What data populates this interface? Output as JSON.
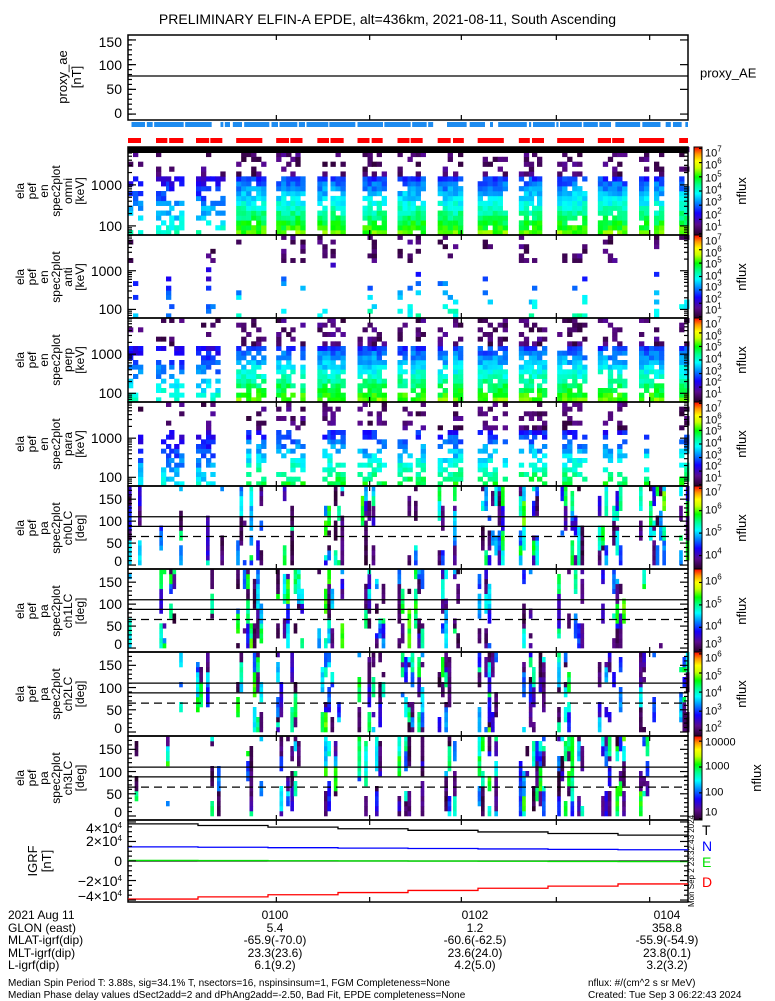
{
  "title": "PRELIMINARY ELFIN-A EPDE, alt=436km, 2021-08-11, South Ascending",
  "chart_data": {
    "type": "heatmap",
    "time_range_s": [
      0,
      336
    ],
    "time_ticks_s": [
      89,
      145,
      200,
      257,
      313
    ],
    "proxy_ae": {
      "ylabel": [
        "proxy_ae",
        "[nT]"
      ],
      "yrange": [
        -12,
        160
      ],
      "yticks": [
        {
          "v": 150,
          "label": "150"
        },
        {
          "v": 100,
          "label": "100"
        },
        {
          "v": 50,
          "label": "50"
        },
        {
          "v": 0,
          "label": "0"
        }
      ],
      "value": 77,
      "legend": "proxy_AE"
    },
    "bars": {
      "blue_color": "#1e8cf0",
      "red_color": "#ff0000",
      "blue": [
        [
          2.1,
          10.2
        ],
        [
          11.3,
          14.8
        ],
        [
          15.7,
          33.4
        ],
        [
          34.3,
          50.2
        ],
        [
          55.5,
          57.2
        ],
        [
          58.1,
          61.2
        ],
        [
          62.9,
          68.4
        ],
        [
          69.7,
          84.8
        ],
        [
          86.1,
          90
        ],
        [
          90.9,
          101.6
        ],
        [
          102.5,
          106.2
        ],
        [
          107.1,
          120.2
        ],
        [
          120.8,
          136.4
        ],
        [
          137.7,
          153
        ],
        [
          153.8,
          169.6
        ],
        [
          170.5,
          179.2
        ],
        [
          180.1,
          183.1
        ],
        [
          191.4,
          203.2
        ],
        [
          205,
          214.2
        ],
        [
          217.2,
          219
        ],
        [
          222.1,
          239.3
        ],
        [
          240.6,
          241.9
        ],
        [
          243,
          256.1
        ],
        [
          257,
          258.3
        ],
        [
          259.2,
          272.3
        ],
        [
          273.2,
          281.9
        ],
        [
          282.8,
          289.8
        ],
        [
          292.4,
          307.3
        ],
        [
          308.6,
          319.5
        ],
        [
          322.6,
          325.7
        ],
        [
          327,
          332.2
        ],
        [
          334.4,
          336
        ]
      ],
      "red": [
        [
          0,
          7.8
        ],
        [
          16.8,
          23.6
        ],
        [
          24.7,
          33.2
        ],
        [
          40.8,
          48.7
        ],
        [
          49.4,
          56.6
        ],
        [
          64.9,
          80.6
        ],
        [
          88.9,
          96.6
        ],
        [
          97.4,
          104.7
        ],
        [
          113.6,
          120.6
        ],
        [
          121.5,
          129.4
        ],
        [
          137.7,
          144.9
        ],
        [
          146.2,
          152.8
        ],
        [
          161.7,
          168.9
        ],
        [
          169.6,
          176.8
        ],
        [
          185.8,
          193.6
        ],
        [
          195,
          201.5
        ],
        [
          209.8,
          225.5
        ],
        [
          234.5,
          241.1
        ],
        [
          242.4,
          249.6
        ],
        [
          257.5,
          273.6
        ],
        [
          281.9,
          289.8
        ],
        [
          290.5,
          297.7
        ],
        [
          306.6,
          321.7
        ],
        [
          330.7,
          336
        ]
      ]
    },
    "spec_panels": [
      {
        "kind": "omni",
        "label": [
          "ela",
          "pef",
          "en",
          "spec2plot",
          "omni",
          "[keV]"
        ],
        "yrange": [
          60,
          8400
        ],
        "yticks": [
          {
            "v": 100,
            "label": "100"
          },
          {
            "v": 1000,
            "label": "1000"
          }
        ],
        "density": 0.9,
        "colorbar": {
          "range": [
            0.9,
            7.1
          ],
          "ticks": [
            {
              "v": 7,
              "base": "10",
              "exp": "7"
            },
            {
              "v": 6,
              "base": "10",
              "exp": "6"
            },
            {
              "v": 5,
              "base": "10",
              "exp": "5"
            },
            {
              "v": 4,
              "base": "10",
              "exp": "4"
            },
            {
              "v": 3,
              "base": "10",
              "exp": "3"
            },
            {
              "v": 2,
              "base": "10",
              "exp": "2"
            },
            {
              "v": 1,
              "base": "10",
              "exp": "1"
            }
          ],
          "zlabel": "nflux"
        }
      },
      {
        "kind": "anti",
        "label": [
          "ela",
          "pef",
          "en",
          "spec2plot",
          "anti",
          "[keV]"
        ],
        "yrange": [
          60,
          8400
        ],
        "yticks": [
          {
            "v": 100,
            "label": "100"
          },
          {
            "v": 1000,
            "label": "1000"
          }
        ],
        "density": 0.35,
        "colorbar": {
          "range": [
            0.9,
            7.1
          ],
          "ticks": [
            {
              "v": 7,
              "base": "10",
              "exp": "7"
            },
            {
              "v": 6,
              "base": "10",
              "exp": "6"
            },
            {
              "v": 5,
              "base": "10",
              "exp": "5"
            },
            {
              "v": 4,
              "base": "10",
              "exp": "4"
            },
            {
              "v": 3,
              "base": "10",
              "exp": "3"
            },
            {
              "v": 2,
              "base": "10",
              "exp": "2"
            },
            {
              "v": 1,
              "base": "10",
              "exp": "1"
            }
          ],
          "zlabel": "nflux"
        }
      },
      {
        "kind": "perp",
        "label": [
          "ela",
          "pef",
          "en",
          "spec2plot",
          "perp",
          "[keV]"
        ],
        "yrange": [
          60,
          8400
        ],
        "yticks": [
          {
            "v": 100,
            "label": "100"
          },
          {
            "v": 1000,
            "label": "1000"
          }
        ],
        "density": 0.85,
        "colorbar": {
          "range": [
            0.9,
            7.1
          ],
          "ticks": [
            {
              "v": 7,
              "base": "10",
              "exp": "7"
            },
            {
              "v": 6,
              "base": "10",
              "exp": "6"
            },
            {
              "v": 5,
              "base": "10",
              "exp": "5"
            },
            {
              "v": 4,
              "base": "10",
              "exp": "4"
            },
            {
              "v": 3,
              "base": "10",
              "exp": "3"
            },
            {
              "v": 2,
              "base": "10",
              "exp": "2"
            },
            {
              "v": 1,
              "base": "10",
              "exp": "1"
            }
          ],
          "zlabel": "nflux"
        }
      },
      {
        "kind": "para",
        "label": [
          "ela",
          "pef",
          "en",
          "spec2plot",
          "para",
          "[keV]"
        ],
        "yrange": [
          60,
          8400
        ],
        "yticks": [
          {
            "v": 100,
            "label": "100"
          },
          {
            "v": 1000,
            "label": "1000"
          }
        ],
        "density": 0.6,
        "colorbar": {
          "range": [
            0.9,
            7.1
          ],
          "ticks": [
            {
              "v": 7,
              "base": "10",
              "exp": "7"
            },
            {
              "v": 6,
              "base": "10",
              "exp": "6"
            },
            {
              "v": 5,
              "base": "10",
              "exp": "5"
            },
            {
              "v": 4,
              "base": "10",
              "exp": "4"
            },
            {
              "v": 3,
              "base": "10",
              "exp": "3"
            },
            {
              "v": 2,
              "base": "10",
              "exp": "2"
            },
            {
              "v": 1,
              "base": "10",
              "exp": "1"
            }
          ],
          "zlabel": "nflux"
        }
      }
    ],
    "pa_panels": [
      {
        "label": [
          "ela",
          "pef",
          "pa",
          "spec2plot",
          "ch0LC",
          "[deg]"
        ],
        "yrange": [
          -9,
          180
        ],
        "yticks": [
          {
            "v": 150,
            "label": "150"
          },
          {
            "v": 100,
            "label": "100"
          },
          {
            "v": 50,
            "label": "50"
          },
          {
            "v": 0,
            "label": "0"
          }
        ],
        "solid_lines": [
          180,
          110,
          88
        ],
        "dashed_line": 65,
        "colorbar": {
          "range": [
            3.4,
            7.1
          ],
          "ticks": [
            {
              "v": 7,
              "base": "10",
              "exp": "7"
            },
            {
              "v": 6,
              "base": "10",
              "exp": "6"
            },
            {
              "v": 5,
              "base": "10",
              "exp": "5"
            },
            {
              "v": 4,
              "base": "10",
              "exp": "4"
            }
          ],
          "zlabel": "nflux"
        }
      },
      {
        "label": [
          "ela",
          "pef",
          "pa",
          "spec2plot",
          "ch1LC",
          "[deg]"
        ],
        "yrange": [
          -9,
          180
        ],
        "yticks": [
          {
            "v": 150,
            "label": "150"
          },
          {
            "v": 100,
            "label": "100"
          },
          {
            "v": 50,
            "label": "50"
          },
          {
            "v": 0,
            "label": "0"
          }
        ],
        "solid_lines": [
          180,
          110,
          88
        ],
        "dashed_line": 65,
        "colorbar": {
          "range": [
            2.9,
            6.6
          ],
          "ticks": [
            {
              "v": 6,
              "base": "10",
              "exp": "6"
            },
            {
              "v": 5,
              "base": "10",
              "exp": "5"
            },
            {
              "v": 4,
              "base": "10",
              "exp": "4"
            },
            {
              "v": 3,
              "base": "10",
              "exp": "3"
            }
          ],
          "zlabel": "nflux"
        }
      },
      {
        "label": [
          "ela",
          "pef",
          "pa",
          "spec2plot",
          "ch2LC",
          "[deg]"
        ],
        "yrange": [
          -9,
          180
        ],
        "yticks": [
          {
            "v": 150,
            "label": "150"
          },
          {
            "v": 100,
            "label": "100"
          },
          {
            "v": 50,
            "label": "50"
          },
          {
            "v": 0,
            "label": "0"
          }
        ],
        "solid_lines": [
          180,
          110,
          88
        ],
        "dashed_line": 65,
        "colorbar": {
          "range": [
            1.7,
            6.1
          ],
          "ticks": [
            {
              "v": 6,
              "base": "10",
              "exp": "6"
            },
            {
              "v": 5,
              "base": "10",
              "exp": "5"
            },
            {
              "v": 4,
              "base": "10",
              "exp": "4"
            },
            {
              "v": 3,
              "base": "10",
              "exp": "3"
            },
            {
              "v": 2,
              "base": "10",
              "exp": "2"
            }
          ],
          "zlabel": "nflux"
        }
      },
      {
        "label": [
          "ela",
          "pef",
          "pa",
          "spec2plot",
          "ch3LC",
          "[deg]"
        ],
        "yrange": [
          -9,
          180
        ],
        "yticks": [
          {
            "v": 150,
            "label": "150"
          },
          {
            "v": 100,
            "label": "100"
          },
          {
            "v": 50,
            "label": "50"
          },
          {
            "v": 0,
            "label": "0"
          }
        ],
        "solid_lines": [
          180,
          110,
          88
        ],
        "dashed_line": 65,
        "colorbar": {
          "range": [
            0.95,
            4.2
          ],
          "ticks": [
            {
              "v": 4,
              "base": "10000",
              "exp": ""
            },
            {
              "v": 3,
              "base": "1000",
              "exp": ""
            },
            {
              "v": 2,
              "base": "100",
              "exp": ""
            },
            {
              "v": 1,
              "base": "10",
              "exp": ""
            }
          ],
          "zlabel": "nflux"
        }
      }
    ],
    "igrf": {
      "ylabel": [
        "IGRF",
        "[nT]"
      ],
      "yrange": [
        -42000,
        42000
      ],
      "yticks": [
        {
          "v": 40000,
          "base": "4×10",
          "exp": "4"
        },
        {
          "v": 20000,
          "base": "2×10",
          "exp": "4"
        },
        {
          "v": 0,
          "base": "0",
          "exp": ""
        },
        {
          "v": -20000,
          "base": "−2×10",
          "exp": "4"
        },
        {
          "v": -40000,
          "base": "−4×10",
          "exp": "4"
        }
      ],
      "series": [
        {
          "name": "T",
          "color": "#000000",
          "start": 38000,
          "end": 26500
        },
        {
          "name": "N",
          "color": "#0000ff",
          "start": 14500,
          "end": 11500
        },
        {
          "name": "E",
          "color": "#00e000",
          "start": 600,
          "end": -600
        },
        {
          "name": "D",
          "color": "#ff0000",
          "start": -39000,
          "end": -23500
        }
      ],
      "stamp": "Mon Sep  2 23:32:43 2024"
    }
  },
  "ephemeris": {
    "rows": [
      {
        "label": "2021 Aug 11",
        "values": [
          "0100",
          "0102",
          "0104"
        ]
      },
      {
        "label": "GLON (east)",
        "values": [
          "5.4",
          "1.2",
          "358.8"
        ]
      },
      {
        "label": "MLAT-igrf(dip)",
        "values": [
          "-65.9(-70.0)",
          "-60.6(-62.5)",
          "-55.9(-54.9)"
        ]
      },
      {
        "label": "MLT-igrf(dip)",
        "values": [
          "23.3(23.6)",
          "23.6(24.0)",
          "23.8(0.1)"
        ]
      },
      {
        "label": "L-igrf(dip)",
        "values": [
          "6.1(9.2)",
          "4.2(5.0)",
          "3.2(3.2)"
        ]
      }
    ]
  },
  "footer": {
    "line1": "Median Spin Period T: 3.88s, sig=34.1% T, nsectors=16, nspinsinsum=1, FGM Completeness=None",
    "line2": "Median Phase delay values dSect2add=2 and dPhAng2add=-2.50, Bad Fit, EPDE completeness=None",
    "units": "nflux: #/(cm^2 s sr MeV)",
    "created": "Created: Tue Sep  3 06:22:43 2024"
  }
}
